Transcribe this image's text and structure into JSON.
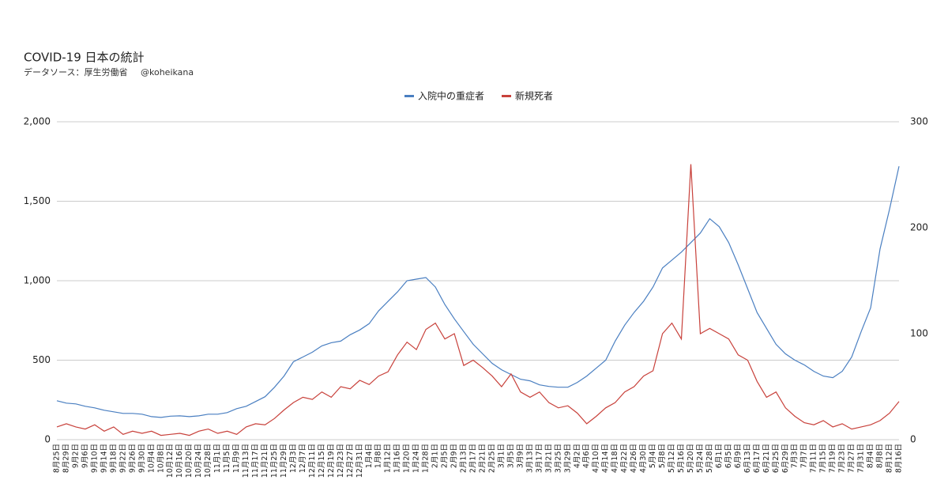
{
  "chart_data": {
    "type": "line",
    "title": "COVID-19 日本の統計",
    "subtitle": "データソース：厚生労働省",
    "credit": "@koheikana",
    "categories": [
      "8月25日",
      "8月29日",
      "9月2日",
      "9月6日",
      "9月10日",
      "9月14日",
      "9月18日",
      "9月22日",
      "9月26日",
      "9月30日",
      "10月4日",
      "10月8日",
      "10月12日",
      "10月16日",
      "10月20日",
      "10月24日",
      "10月28日",
      "11月1日",
      "11月5日",
      "11月9日",
      "11月13日",
      "11月17日",
      "11月21日",
      "11月25日",
      "11月29日",
      "12月3日",
      "12月7日",
      "12月11日",
      "12月15日",
      "12月19日",
      "12月23日",
      "12月27日",
      "12月31日",
      "1月4日",
      "1月8日",
      "1月12日",
      "1月16日",
      "1月20日",
      "1月24日",
      "1月28日",
      "2月1日",
      "2月5日",
      "2月9日",
      "2月13日",
      "2月17日",
      "2月21日",
      "2月25日",
      "3月1日",
      "3月5日",
      "3月9日",
      "3月13日",
      "3月17日",
      "3月21日",
      "3月25日",
      "3月29日",
      "4月2日",
      "4月6日",
      "4月10日",
      "4月14日",
      "4月18日",
      "4月22日",
      "4月26日",
      "4月30日",
      "5月4日",
      "5月8日",
      "5月12日",
      "5月16日",
      "5月20日",
      "5月24日",
      "5月28日",
      "6月1日",
      "6月5日",
      "6月9日",
      "6月13日",
      "6月17日",
      "6月21日",
      "6月25日",
      "6月29日",
      "7月3日",
      "7月7日",
      "7月11日",
      "7月15日",
      "7月19日",
      "7月23日",
      "7月27日",
      "7月31日",
      "8月4日",
      "8月8日",
      "8月12日",
      "8月16日"
    ],
    "series": [
      {
        "name": "入院中の重症者",
        "color": "#4a7fc1",
        "axis": "y",
        "values": [
          245,
          230,
          225,
          210,
          200,
          185,
          175,
          165,
          165,
          160,
          145,
          140,
          148,
          150,
          145,
          150,
          160,
          160,
          170,
          195,
          210,
          240,
          270,
          330,
          400,
          490,
          520,
          550,
          590,
          610,
          620,
          660,
          690,
          730,
          810,
          870,
          930,
          1000,
          1010,
          1020,
          960,
          850,
          760,
          680,
          600,
          540,
          480,
          440,
          410,
          380,
          370,
          345,
          335,
          330,
          330,
          360,
          400,
          450,
          500,
          620,
          720,
          800,
          870,
          960,
          1080,
          1130,
          1180,
          1240,
          1300,
          1390,
          1340,
          1240,
          1100,
          950,
          800,
          700,
          600,
          540,
          500,
          470,
          430,
          400,
          390,
          430,
          520,
          680,
          830,
          1200,
          1450,
          1720
        ]
      },
      {
        "name": "新規死者",
        "color": "#c8413b",
        "axis": "y2",
        "values": [
          12,
          15,
          12,
          10,
          14,
          8,
          12,
          5,
          8,
          6,
          8,
          4,
          5,
          6,
          4,
          8,
          10,
          6,
          8,
          5,
          12,
          15,
          14,
          20,
          28,
          35,
          40,
          38,
          45,
          40,
          50,
          48,
          56,
          52,
          60,
          64,
          80,
          92,
          85,
          104,
          110,
          95,
          100,
          70,
          75,
          68,
          60,
          50,
          62,
          45,
          40,
          45,
          35,
          30,
          32,
          25,
          15,
          22,
          30,
          35,
          45,
          50,
          60,
          65,
          100,
          110,
          95,
          260,
          100,
          105,
          100,
          95,
          80,
          75,
          55,
          40,
          45,
          30,
          22,
          16,
          14,
          18,
          12,
          15,
          10,
          12,
          14,
          18,
          25,
          36
        ]
      }
    ],
    "ylim": [
      0,
      2000
    ],
    "yticks": [
      0,
      500,
      {
        "value": 1000,
        "label": "1,000"
      },
      {
        "value": 1500,
        "label": "1,500"
      },
      {
        "value": 2000,
        "label": "2,000"
      }
    ],
    "y2lim": [
      0,
      300
    ],
    "y2ticks": [
      0,
      100,
      200,
      300
    ],
    "grid": true,
    "legend": "top"
  }
}
